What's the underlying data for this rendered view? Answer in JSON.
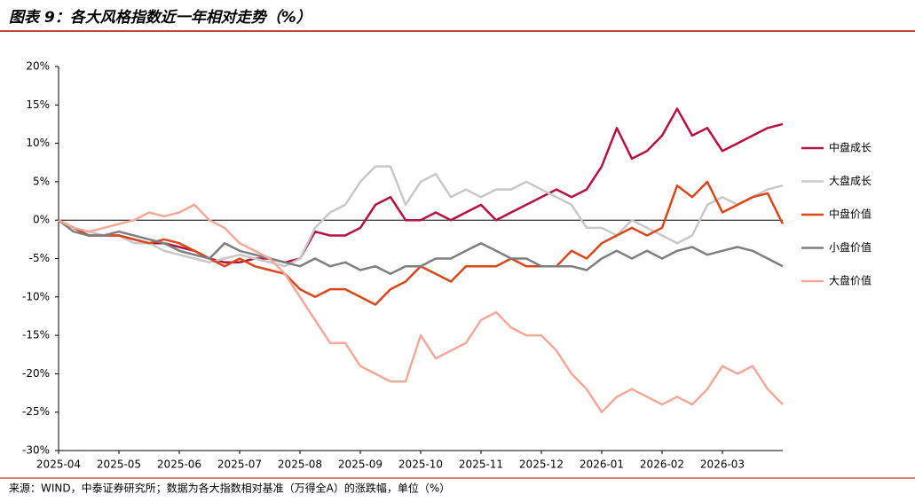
{
  "chart_data": {
    "type": "line",
    "title": "图表 9：各大风格指数近一年相对走势（%）",
    "source": "来源：WIND，中泰证券研究所；数据为各大指数相对基准（万得全A）的涨跌幅，单位（%）",
    "categories": [
      "2025-04",
      null,
      null,
      null,
      "2025-05",
      null,
      null,
      null,
      "2025-06",
      null,
      null,
      null,
      "2025-07",
      null,
      null,
      null,
      "2025-08",
      null,
      null,
      null,
      "2025-09",
      null,
      null,
      null,
      "2025-10",
      null,
      null,
      null,
      "2025-11",
      null,
      null,
      null,
      "2025-12",
      null,
      null,
      null,
      "2026-01",
      null,
      null,
      null,
      "2026-02",
      null,
      null,
      null,
      "2026-03",
      null,
      null,
      null,
      null
    ],
    "ylim": [
      -30,
      20
    ],
    "yticks": [
      {
        "value": -30,
        "label": "-30%"
      },
      {
        "value": -25,
        "label": "-25%"
      },
      {
        "value": -20,
        "label": "-20%"
      },
      {
        "value": -15,
        "label": "-15%"
      },
      {
        "value": -10,
        "label": "-10%"
      },
      {
        "value": -5,
        "label": "-5%"
      },
      {
        "value": 0,
        "label": "0%"
      },
      {
        "value": 5,
        "label": "5%"
      },
      {
        "value": 10,
        "label": "10%"
      },
      {
        "value": 15,
        "label": "15%"
      },
      {
        "value": 20,
        "label": "20%"
      }
    ],
    "series": [
      {
        "name": "中盘成长",
        "color": "#b5123f",
        "values": [
          0,
          -1,
          -2,
          -2,
          -2,
          -2.5,
          -3,
          -3,
          -3.5,
          -4,
          -5,
          -5.5,
          -5.5,
          -5,
          -5,
          -5.5,
          -5,
          -1.5,
          -2,
          -2,
          -1,
          2,
          3,
          0,
          0,
          1,
          0,
          1,
          2,
          0,
          1,
          2,
          3,
          4,
          3,
          4,
          7,
          12,
          8,
          9,
          11,
          14.5,
          11,
          12,
          9,
          10,
          11,
          12,
          12.5
        ]
      },
      {
        "name": "大盘成长",
        "color": "#c8c8c8",
        "values": [
          0,
          -1,
          -1.5,
          -2,
          -2,
          -3,
          -3,
          -4,
          -4.5,
          -5,
          -5.5,
          -5,
          -4.5,
          -5,
          -5.5,
          -6,
          -5,
          -1,
          1,
          2,
          5,
          7,
          7,
          2,
          5,
          6,
          3,
          4,
          3,
          4,
          4,
          5,
          4,
          3,
          2,
          -1,
          -1,
          -2,
          0,
          -1,
          -2,
          -3,
          -2,
          2,
          3,
          2,
          3,
          4,
          4.5
        ]
      },
      {
        "name": "中盘价值",
        "color": "#d9471a",
        "values": [
          0,
          -1,
          -2,
          -2,
          -2,
          -2.5,
          -3,
          -2.5,
          -3,
          -4,
          -5,
          -6,
          -5,
          -6,
          -6.5,
          -7,
          -9,
          -10,
          -9,
          -9,
          -10,
          -11,
          -9,
          -8,
          -6,
          -7,
          -8,
          -6,
          -6,
          -6,
          -5,
          -6,
          -6,
          -6,
          -4,
          -5,
          -3,
          -2,
          -1,
          -2,
          -1,
          4.5,
          3,
          5,
          1,
          2,
          3,
          3.5,
          -0.5
        ]
      },
      {
        "name": "小盘价值",
        "color": "#7f7f7f",
        "values": [
          0,
          -1.5,
          -2,
          -2,
          -1.5,
          -2,
          -2.5,
          -3,
          -4,
          -4.5,
          -5,
          -3,
          -4,
          -4.5,
          -5,
          -5.5,
          -6,
          -5,
          -6,
          -5.5,
          -6.5,
          -6,
          -7,
          -6,
          -6,
          -5,
          -5,
          -4,
          -3,
          -4,
          -5,
          -5,
          -6,
          -6,
          -6,
          -6.5,
          -5,
          -4,
          -5,
          -4,
          -5,
          -4,
          -3.5,
          -4.5,
          -4,
          -3.5,
          -4,
          -5,
          -6
        ]
      },
      {
        "name": "大盘价值",
        "color": "#f4a898",
        "values": [
          0,
          -1,
          -1.5,
          -1,
          -0.5,
          0,
          1,
          0.5,
          1,
          2,
          0,
          -1,
          -3,
          -4,
          -5,
          -7,
          -10,
          -13,
          -16,
          -16,
          -19,
          -20,
          -21,
          -21,
          -15,
          -18,
          -17,
          -16,
          -13,
          -12,
          -14,
          -15,
          -15,
          -17,
          -20,
          -22,
          -25,
          -23,
          -22,
          -23,
          -24,
          -23,
          -24,
          -22,
          -19,
          -20,
          -19,
          -22,
          -24
        ]
      }
    ]
  }
}
